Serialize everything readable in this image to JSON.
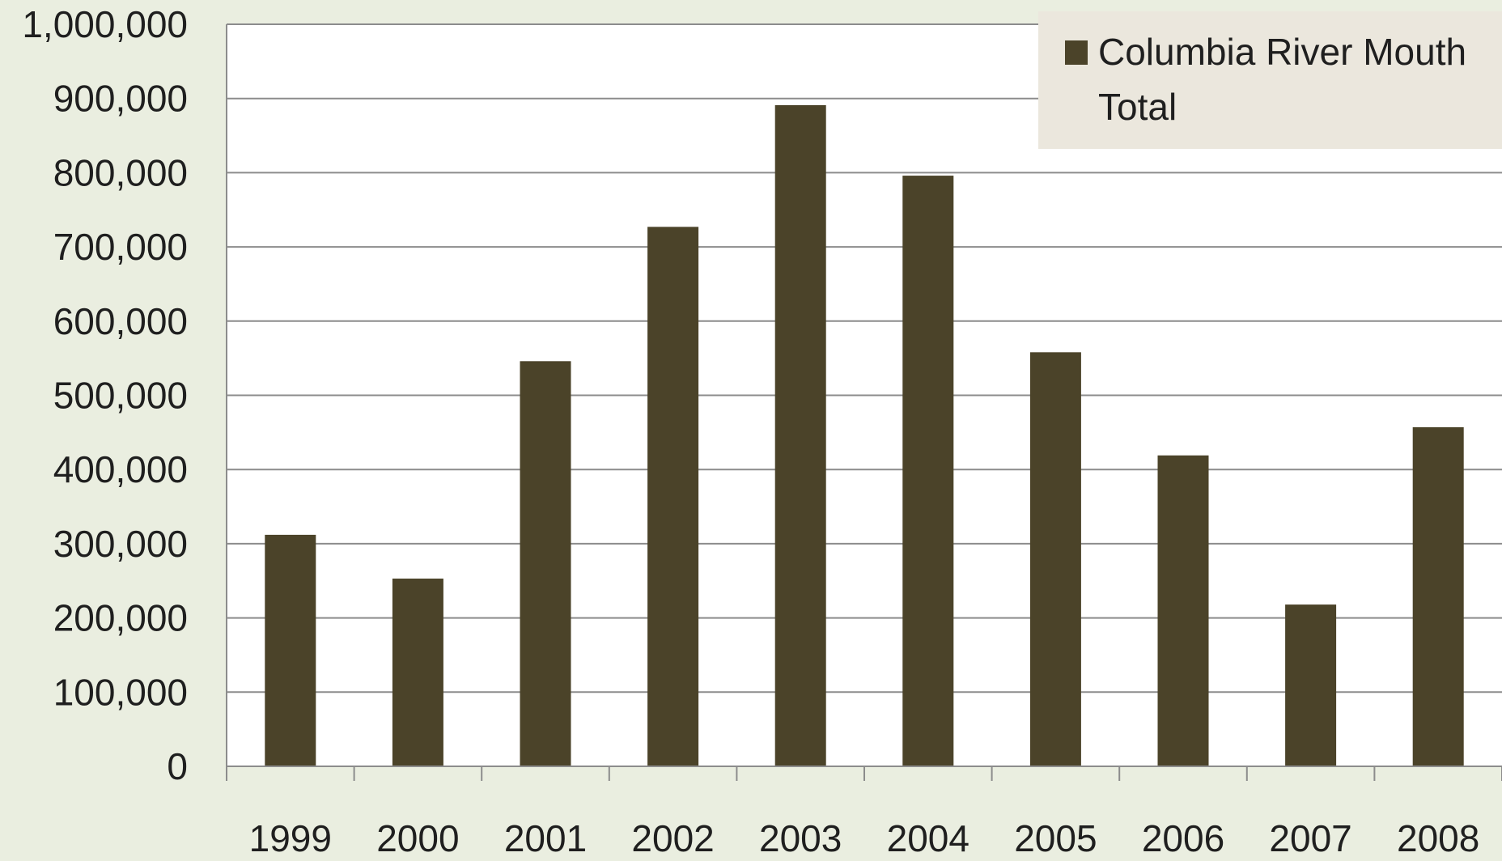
{
  "chart_data": {
    "type": "bar",
    "title": "",
    "xlabel": "",
    "ylabel": "",
    "categories": [
      "1999",
      "2000",
      "2001",
      "2002",
      "2003",
      "2004",
      "2005",
      "2006",
      "2007",
      "2008"
    ],
    "series": [
      {
        "name": "Columbia River Mouth Total",
        "values": [
          312000,
          253000,
          546000,
          727000,
          891000,
          796000,
          558000,
          419000,
          218000,
          457000
        ],
        "color": "#4b4329"
      }
    ],
    "ylim": [
      0,
      1000000
    ],
    "yticks": [
      "0",
      "100,000",
      "200,000",
      "300,000",
      "400,000",
      "500,000",
      "600,000",
      "700,000",
      "800,000",
      "900,000",
      "1,000,000"
    ],
    "ytick_values": [
      0,
      100000,
      200000,
      300000,
      400000,
      500000,
      600000,
      700000,
      800000,
      900000,
      1000000
    ],
    "grid": true,
    "legend": {
      "position": "top-right",
      "line1": "Columbia River Mouth",
      "line2": "Total"
    },
    "colors": {
      "background": "#eaeee0",
      "plot_area": "#ffffff",
      "legend_box": "#ebe7dd",
      "gridline": "#8c8c8c",
      "bar": "#4b4329"
    }
  }
}
